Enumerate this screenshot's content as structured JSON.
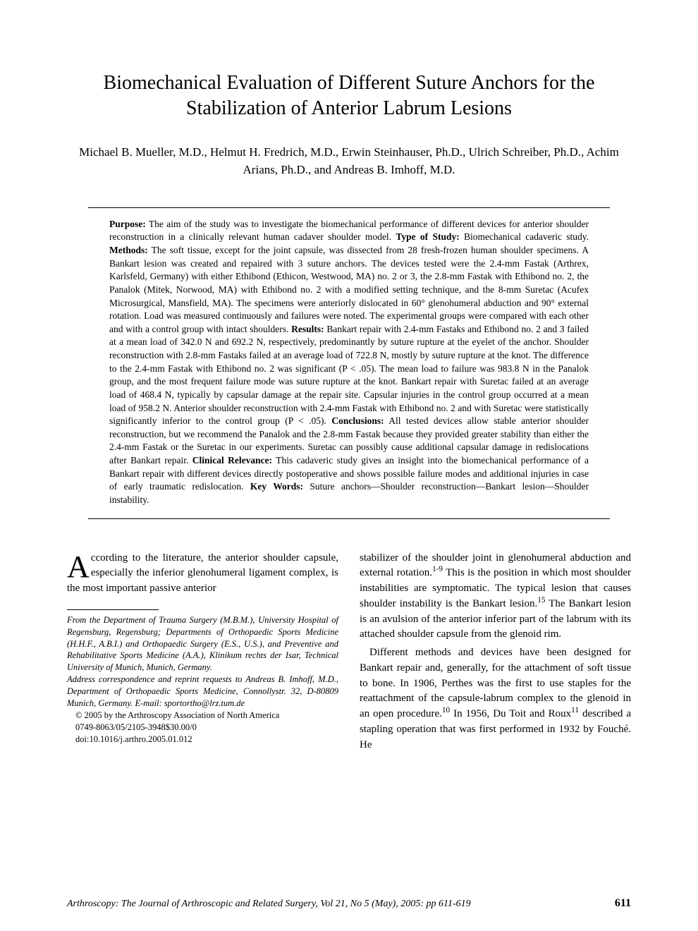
{
  "title": "Biomechanical Evaluation of Different Suture Anchors for the Stabilization of Anterior Labrum Lesions",
  "authors": "Michael B. Mueller, M.D., Helmut H. Fredrich, M.D., Erwin Steinhauser, Ph.D., Ulrich Schreiber, Ph.D., Achim Arians, Ph.D., and Andreas B. Imhoff, M.D.",
  "abstract": {
    "purpose_label": "Purpose:",
    "purpose": " The aim of the study was to investigate the biomechanical performance of different devices for anterior shoulder reconstruction in a clinically relevant human cadaver shoulder model. ",
    "type_label": "Type of Study:",
    "type": " Biomechanical cadaveric study. ",
    "methods_label": "Methods:",
    "methods": " The soft tissue, except for the joint capsule, was dissected from 28 fresh-frozen human shoulder specimens. A Bankart lesion was created and repaired with 3 suture anchors. The devices tested were the 2.4-mm Fastak (Arthrex, Karlsfeld, Germany) with either Ethibond (Ethicon, Westwood, MA) no. 2 or 3, the 2.8-mm Fastak with Ethibond no. 2, the Panalok (Mitek, Norwood, MA) with Ethibond no. 2 with a modified setting technique, and the 8-mm Suretac (Acufex Microsurgical, Mansfield, MA). The specimens were anteriorly dislocated in 60° glenohumeral abduction and 90° external rotation. Load was measured continuously and failures were noted. The experimental groups were compared with each other and with a control group with intact shoulders. ",
    "results_label": "Results:",
    "results": " Bankart repair with 2.4-mm Fastaks and Ethibond no. 2 and 3 failed at a mean load of 342.0 N and 692.2 N, respectively, predominantly by suture rupture at the eyelet of the anchor. Shoulder reconstruction with 2.8-mm Fastaks failed at an average load of 722.8 N, mostly by suture rupture at the knot. The difference to the 2.4-mm Fastak with Ethibond no. 2 was significant (P < .05). The mean load to failure was 983.8 N in the Panalok group, and the most frequent failure mode was suture rupture at the knot. Bankart repair with Suretac failed at an average load of 468.4 N, typically by capsular damage at the repair site. Capsular injuries in the control group occurred at a mean load of 958.2 N. Anterior shoulder reconstruction with 2.4-mm Fastak with Ethibond no. 2 and with Suretac were statistically significantly inferior to the control group (P < .05). ",
    "conclusions_label": "Conclusions:",
    "conclusions": " All tested devices allow stable anterior shoulder reconstruction, but we recommend the Panalok and the 2.8-mm Fastak because they provided greater stability than either the 2.4-mm Fastak or the Suretac in our experiments. Suretac can possibly cause additional capsular damage in redislocations after Bankart repair. ",
    "relevance_label": "Clinical Relevance:",
    "relevance": " This cadaveric study gives an insight into the biomechanical performance of a Bankart repair with different devices directly postoperative and shows possible failure modes and additional injuries in case of early traumatic redislocation. ",
    "keywords_label": "Key Words:",
    "keywords": " Suture anchors—Shoulder reconstruction—Bankart lesion—Shoulder instability."
  },
  "body": {
    "dropcap": "A",
    "left_para": "ccording to the literature, the anterior shoulder capsule, especially the inferior glenohumeral ligament complex, is the most important passive anterior",
    "right_para1_a": "stabilizer of the shoulder joint in glenohumeral abduction and external rotation.",
    "right_para1_ref1": "1-9",
    "right_para1_b": " This is the position in which most shoulder instabilities are symptomatic. The typical lesion that causes shoulder instability is the Bankart lesion.",
    "right_para1_ref2": "15",
    "right_para1_c": " The Bankart lesion is an avulsion of the anterior inferior part of the labrum with its attached shoulder capsule from the glenoid rim.",
    "right_para2_a": "Different methods and devices have been designed for Bankart repair and, generally, for the attachment of soft tissue to bone. In 1906, Perthes was the first to use staples for the reattachment of the capsule-labrum complex to the glenoid in an open procedure.",
    "right_para2_ref1": "10",
    "right_para2_b": " In 1956, Du Toit and Roux",
    "right_para2_ref2": "11",
    "right_para2_c": " described a stapling operation that was first performed in 1932 by Fouché. He"
  },
  "footnotes": {
    "affil": "From the Department of Trauma Surgery (M.B.M.), University Hospital of Regensburg, Regensburg; Departments of Orthopaedic Sports Medicine (H.H.F., A.B.I.) and Orthopaedic Surgery (E.S., U.S.), and Preventive and Rehabilitative Sports Medicine (A.A.), Klinikum rechts der Isar, Technical University of Munich, Munich, Germany.",
    "correspondence": "Address correspondence and reprint requests to Andreas B. Imhoff, M.D., Department of Orthopaedic Sports Medicine, Connollystr. 32, D-80809 Munich, Germany. E-mail: sportortho@lrz.tum.de",
    "copyright": "© 2005 by the Arthroscopy Association of North America",
    "issn": "0749-8063/05/2105-3948$30.00/0",
    "doi": "doi:10.1016/j.arthro.2005.01.012"
  },
  "footer": {
    "journal": "Arthroscopy: The Journal of Arthroscopic and Related Surgery, Vol 21, No 5 (May), 2005: pp 611-619",
    "page": "611"
  }
}
